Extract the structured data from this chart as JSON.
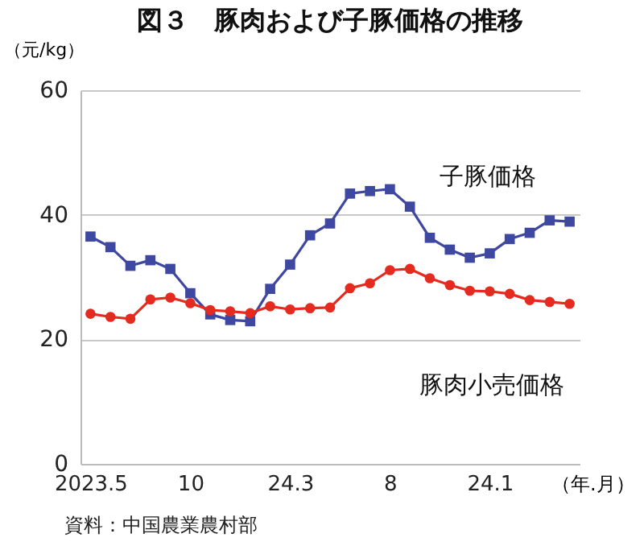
{
  "chart_data": {
    "type": "line",
    "title": "図３　豚肉および子豚価格の推移",
    "ylabel": "（元/kg）",
    "xlabel": "（年.月）",
    "annotations": [
      "資料：中国農業農村部"
    ],
    "categories": [
      "2023.5",
      null,
      null,
      null,
      null,
      "10",
      null,
      null,
      null,
      null,
      "24.3",
      null,
      null,
      null,
      null,
      "8",
      null,
      null,
      null,
      null,
      "24.1",
      null,
      null,
      null,
      null
    ],
    "series": [
      {
        "name": "子豚価格",
        "color": "#3f48a0",
        "marker": "square",
        "values": [
          36.5,
          34.8,
          31.8,
          32.7,
          31.3,
          27.4,
          24.0,
          23.1,
          22.9,
          28.1,
          32.0,
          36.7,
          38.6,
          43.4,
          43.8,
          44.1,
          41.3,
          36.3,
          34.4,
          33.1,
          33.8,
          36.1,
          37.1,
          39.1,
          38.9
        ]
      },
      {
        "name": "豚肉小売価格",
        "color": "#e52b20",
        "marker": "circle",
        "values": [
          24.1,
          23.6,
          23.3,
          26.4,
          26.7,
          25.8,
          24.7,
          24.5,
          24.2,
          25.3,
          24.8,
          25.0,
          25.1,
          28.2,
          29.0,
          31.1,
          31.3,
          29.8,
          28.7,
          27.8,
          27.7,
          27.3,
          26.3,
          26.0,
          25.7
        ]
      }
    ],
    "ylim": [
      0,
      60
    ],
    "yticks": [
      0,
      20,
      40,
      60
    ],
    "grid": "y"
  }
}
